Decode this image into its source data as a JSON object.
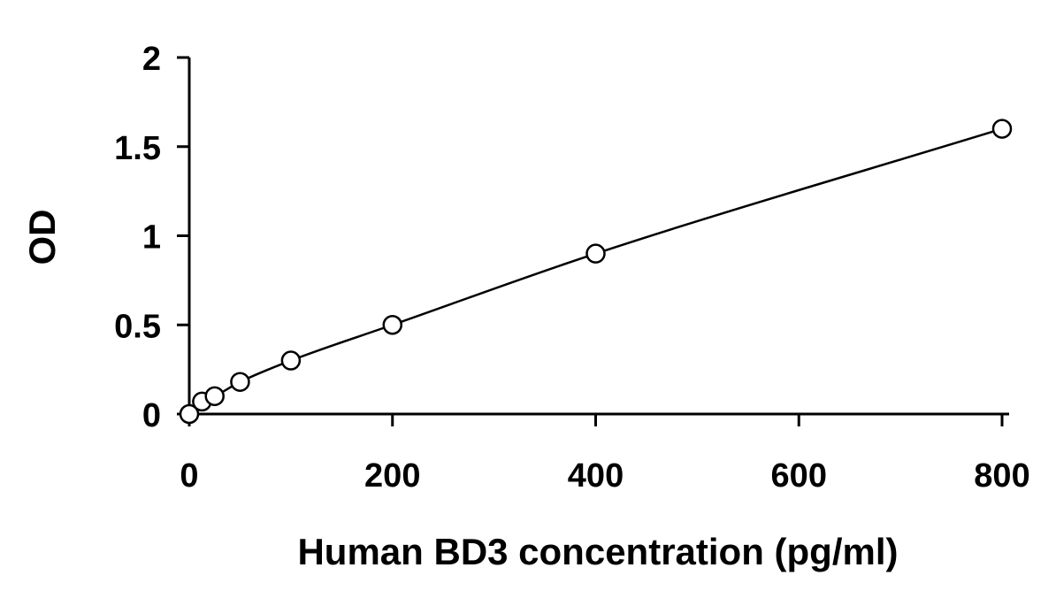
{
  "chart_data": {
    "type": "scatter",
    "title": "",
    "xlabel": "Human BD3 concentration (pg/ml)",
    "ylabel": "OD",
    "xlim": [
      0,
      800
    ],
    "ylim": [
      0,
      2
    ],
    "xticks": [
      0,
      200,
      400,
      600,
      800
    ],
    "yticks": [
      0,
      0.5,
      1,
      1.5,
      2
    ],
    "xtick_labels": [
      "0",
      "200",
      "400",
      "600",
      "800"
    ],
    "ytick_labels": [
      "0",
      "0.5",
      "1",
      "1.5",
      "2"
    ],
    "grid": false,
    "legend": "none",
    "colors": {
      "axis": "#000000",
      "marker_stroke": "#000000",
      "marker_fill": "#ffffff",
      "curve": "#000000"
    },
    "series": [
      {
        "marker": "open-circle",
        "fit_line": true,
        "points": [
          {
            "x": 0,
            "y": 0.0
          },
          {
            "x": 12.5,
            "y": 0.07
          },
          {
            "x": 25,
            "y": 0.1
          },
          {
            "x": 50,
            "y": 0.18
          },
          {
            "x": 100,
            "y": 0.3
          },
          {
            "x": 200,
            "y": 0.5
          },
          {
            "x": 400,
            "y": 0.9
          },
          {
            "x": 800,
            "y": 1.6
          }
        ]
      }
    ]
  }
}
